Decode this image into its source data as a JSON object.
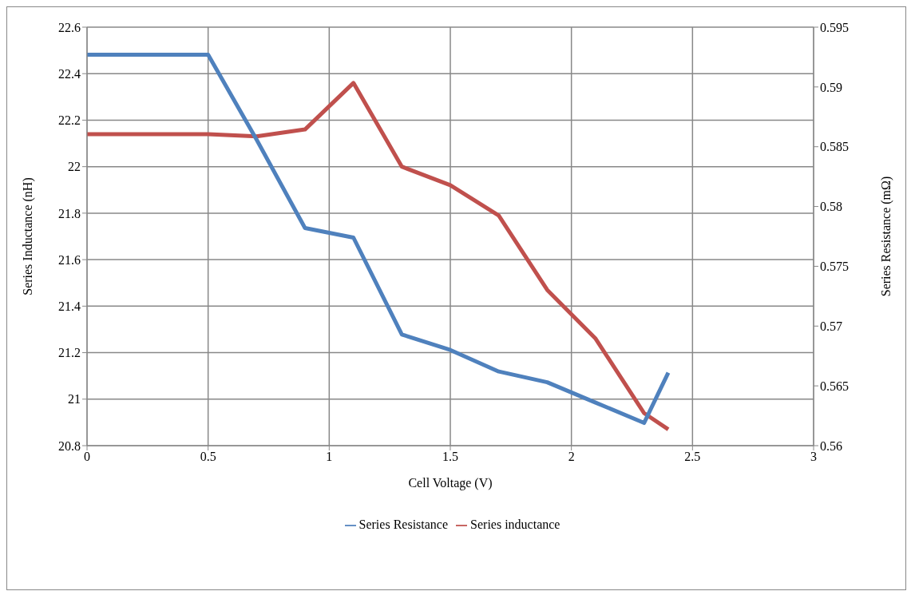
{
  "chart_data": {
    "type": "line",
    "xlabel": "Cell Voltage (V)",
    "ylabel": "Series Inductance (nH)",
    "y2label": "Series Resistance (mΩ)",
    "x": [
      0,
      0.5,
      0.7,
      0.9,
      1.1,
      1.3,
      1.5,
      1.7,
      1.9,
      2.1,
      2.3,
      2.4
    ],
    "series": [
      {
        "name": "Series inductance",
        "color": "#c0504d",
        "values": [
          22.14,
          22.14,
          22.13,
          22.16,
          22.36,
          22.0,
          21.92,
          21.79,
          21.47,
          21.26,
          20.94,
          20.87
        ]
      },
      {
        "name": "Series Resistance",
        "color": "#4f81bd",
        "axis": "y2",
        "values": [
          0.5927,
          0.5927,
          0.5856,
          0.5782,
          0.5774,
          0.5693,
          0.568,
          0.5662,
          0.5653,
          0.5636,
          0.5619,
          0.5661
        ]
      }
    ],
    "xlim": [
      0,
      3
    ],
    "xticks": [
      0,
      0.5,
      1,
      1.5,
      2,
      2.5,
      3
    ],
    "ylim": [
      20.8,
      22.6
    ],
    "yticks": [
      20.8,
      21,
      21.2,
      21.4,
      21.6,
      21.8,
      22,
      22.2,
      22.4,
      22.6
    ],
    "y2lim": [
      0.56,
      0.595
    ],
    "y2ticks": [
      0.56,
      0.565,
      0.57,
      0.575,
      0.58,
      0.585,
      0.59,
      0.595
    ],
    "grid": true,
    "legend": "bottom",
    "marker": "none",
    "line_style": "solid"
  }
}
